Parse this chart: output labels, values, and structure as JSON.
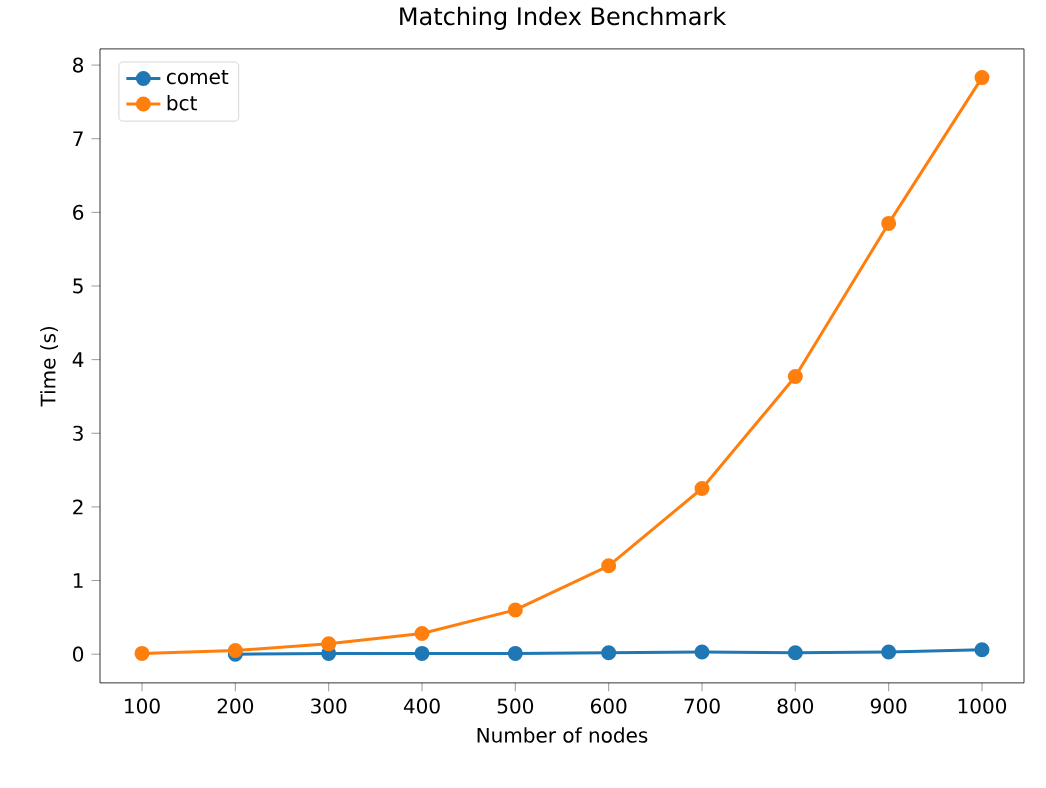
{
  "chart_data": {
    "type": "line",
    "title": "Matching Index Benchmark",
    "xlabel": "Number of nodes",
    "ylabel": "Time (s)",
    "x": [
      100,
      200,
      300,
      400,
      500,
      600,
      700,
      800,
      900,
      1000
    ],
    "series": [
      {
        "name": "comet",
        "color": "#1f77b4",
        "values": [
          null,
          0.0,
          0.01,
          0.01,
          0.01,
          0.02,
          0.03,
          0.02,
          0.03,
          0.06
        ]
      },
      {
        "name": "bct",
        "color": "#ff7f0e",
        "values": [
          0.01,
          0.05,
          0.14,
          0.28,
          0.6,
          1.2,
          2.25,
          3.77,
          5.85,
          7.83
        ]
      }
    ],
    "xlim": [
      55,
      1045
    ],
    "ylim": [
      -0.39,
      8.22
    ],
    "xticks": [
      100,
      200,
      300,
      400,
      500,
      600,
      700,
      800,
      900,
      1000
    ],
    "yticks": [
      0,
      1,
      2,
      3,
      4,
      5,
      6,
      7,
      8
    ],
    "legend": "top left",
    "marker": "circle",
    "line_style": "solid",
    "grid": false
  }
}
